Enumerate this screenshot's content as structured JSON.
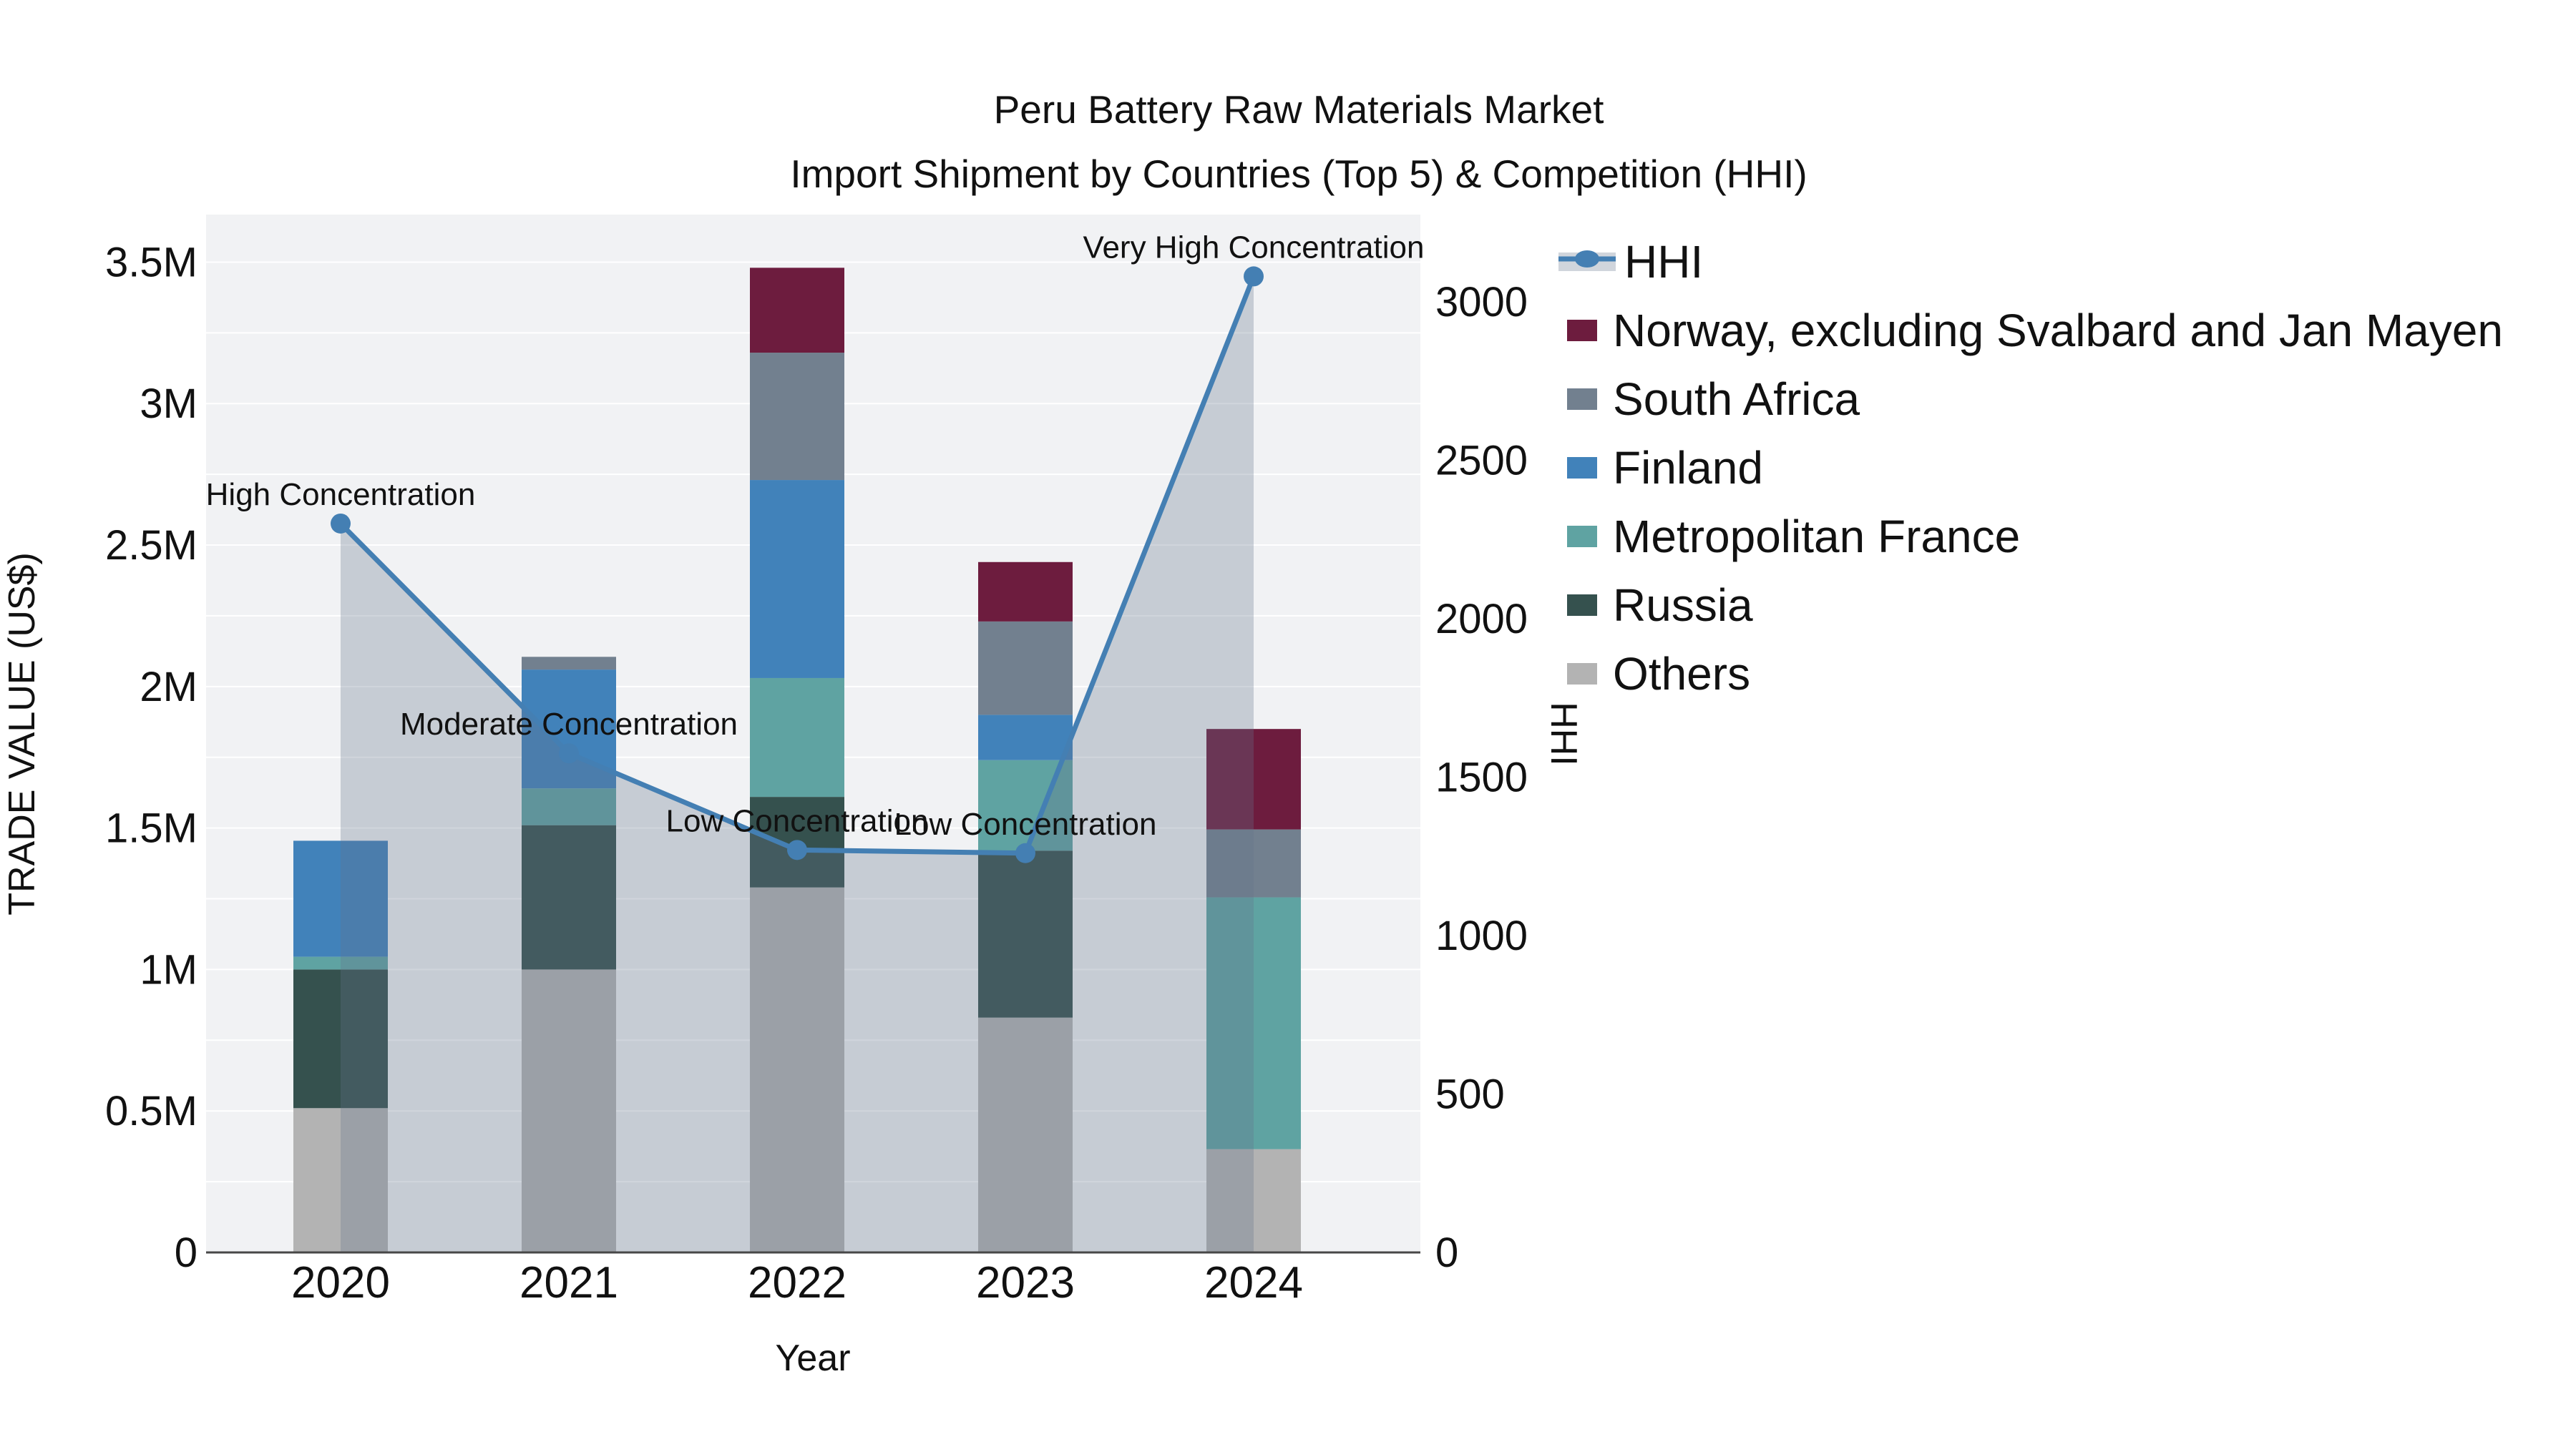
{
  "title": {
    "line1": "Peru Battery Raw Materials Market",
    "line2": "Import Shipment by Countries (Top 5) & Competition (HHI)"
  },
  "axes": {
    "x_label": "Year",
    "y_left_label": "TRADE VALUE (US$)",
    "y_right_label": "HHI",
    "x_ticks": [
      "2020",
      "2021",
      "2022",
      "2023",
      "2024"
    ],
    "y_left_ticks": [
      {
        "value": 0,
        "label": "0"
      },
      {
        "value": 500000,
        "label": "0.5M"
      },
      {
        "value": 1000000,
        "label": "1M"
      },
      {
        "value": 1500000,
        "label": "1.5M"
      },
      {
        "value": 2000000,
        "label": "2M"
      },
      {
        "value": 2500000,
        "label": "2.5M"
      },
      {
        "value": 3000000,
        "label": "3M"
      },
      {
        "value": 3500000,
        "label": "3.5M"
      }
    ],
    "y_right_ticks": [
      {
        "value": 0,
        "label": "0"
      },
      {
        "value": 500,
        "label": "500"
      },
      {
        "value": 1000,
        "label": "1000"
      },
      {
        "value": 1500,
        "label": "1500"
      },
      {
        "value": 2000,
        "label": "2000"
      },
      {
        "value": 2500,
        "label": "2500"
      },
      {
        "value": 3000,
        "label": "3000"
      }
    ],
    "y_left_range": [
      0,
      3668000
    ],
    "y_right_range": [
      0,
      3275
    ],
    "grid_step": 250000
  },
  "colors": {
    "plot_bg": "#f1f2f4",
    "grid": "#ffffff",
    "axis_line": "#474747",
    "text": "#111111",
    "hhi_line": "#447fb3",
    "hhi_area_fill": "rgba(100,116,138,0.30)",
    "norway": "#6d1c3e",
    "south_africa": "#72808f",
    "finland": "#4182ba",
    "metropolitan_france": "#5fa3a2",
    "russia": "#35514e",
    "others": "#b3b3b3"
  },
  "legend": [
    {
      "label": "HHI",
      "type": "line",
      "color": "#447fb3"
    },
    {
      "label": "Norway, excluding Svalbard and Jan Mayen",
      "type": "swatch",
      "color": "#6d1c3e"
    },
    {
      "label": "South Africa",
      "type": "swatch",
      "color": "#72808f"
    },
    {
      "label": "Finland",
      "type": "swatch",
      "color": "#4182ba"
    },
    {
      "label": "Metropolitan France",
      "type": "swatch",
      "color": "#5fa3a2"
    },
    {
      "label": "Russia",
      "type": "swatch",
      "color": "#35514e"
    },
    {
      "label": "Others",
      "type": "swatch",
      "color": "#b3b3b3"
    }
  ],
  "chart_data": {
    "type": "combo: stacked-bar (left axis) + line with markers and area fill (right axis)",
    "categories": [
      "2020",
      "2021",
      "2022",
      "2023",
      "2024"
    ],
    "xlabel": "Year",
    "ylabel_left": "TRADE VALUE (US$)",
    "ylabel_right": "HHI",
    "ylim_left": [
      0,
      3668000
    ],
    "ylim_right": [
      0,
      3275
    ],
    "grid": "horizontal, every 250000 on left axis",
    "legend_position": "right",
    "bar_stack_order": "bottom to top as listed",
    "series": [
      {
        "name": "Others",
        "color": "#b3b3b3",
        "values": [
          510000,
          1000000,
          1290000,
          830000,
          365000
        ]
      },
      {
        "name": "Russia",
        "color": "#35514e",
        "values": [
          490000,
          510000,
          320000,
          590000,
          0
        ]
      },
      {
        "name": "Metropolitan France",
        "color": "#5fa3a2",
        "values": [
          45000,
          130000,
          420000,
          320000,
          890000
        ]
      },
      {
        "name": "Finland",
        "color": "#4182ba",
        "values": [
          410000,
          420000,
          700000,
          160000,
          0
        ]
      },
      {
        "name": "South Africa",
        "color": "#72808f",
        "values": [
          0,
          45000,
          450000,
          330000,
          240000
        ]
      },
      {
        "name": "Norway, excluding Svalbard and Jan Mayen",
        "color": "#6d1c3e",
        "values": [
          0,
          0,
          300000,
          210000,
          355000
        ]
      }
    ],
    "bar_totals": [
      1455000,
      2105000,
      3480000,
      2440000,
      1850000
    ],
    "line_series": {
      "name": "HHI",
      "axis": "right",
      "color": "#447fb3",
      "area_fill": "rgba(100,116,138,0.30)",
      "values": [
        2300,
        1575,
        1270,
        1260,
        3080
      ]
    },
    "annotations": [
      {
        "category": "2020",
        "text": "High Concentration"
      },
      {
        "category": "2021",
        "text": "Moderate Concentration"
      },
      {
        "category": "2022",
        "text": "Low Concentration"
      },
      {
        "category": "2023",
        "text": "Low Concentration"
      },
      {
        "category": "2024",
        "text": "Very High Concentration"
      }
    ]
  }
}
